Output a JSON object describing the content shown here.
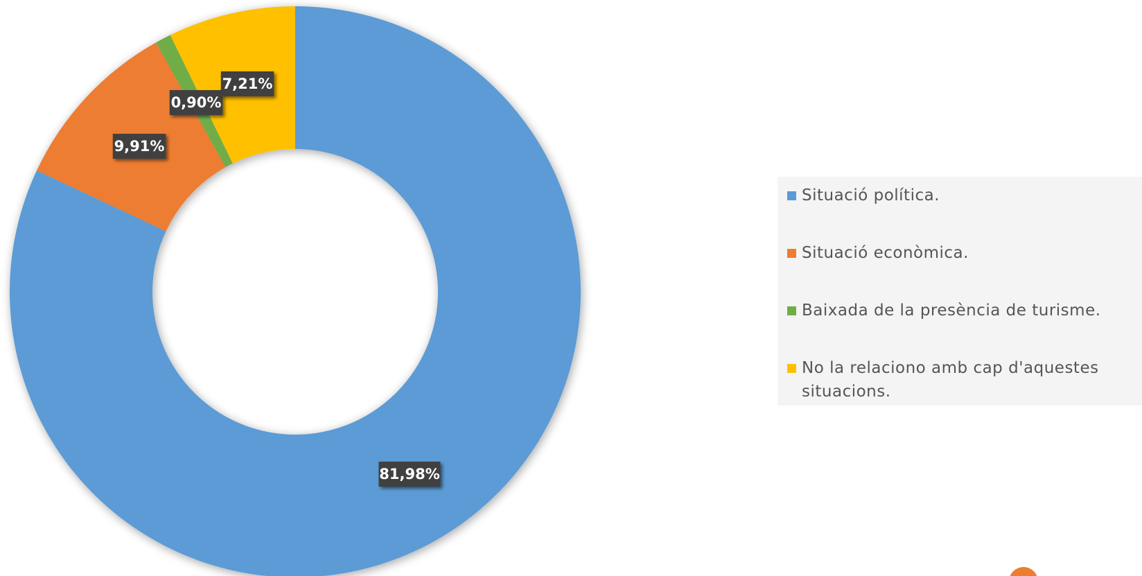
{
  "chart_data": {
    "type": "pie",
    "variant": "donut",
    "slices": [
      {
        "label": "Situació política.",
        "value": 81.98,
        "display": "81,98%",
        "color": "#5b9bd5"
      },
      {
        "label": "Situació econòmica.",
        "value": 9.91,
        "display": "9,91%",
        "color": "#ed7d31"
      },
      {
        "label": "Baixada de la presència de turisme.",
        "value": 0.9,
        "display": "0,90%",
        "color": "#70ad47"
      },
      {
        "label": "No la relaciono amb cap d'aquestes situacions.",
        "value": 7.21,
        "display": "7,21%",
        "color": "#ffc000"
      }
    ],
    "legend_position": "right",
    "data_labels": true
  },
  "legend": {
    "items": [
      {
        "label": "Situació política.",
        "color": "#5b9bd5"
      },
      {
        "label": "Situació econòmica.",
        "color": "#ed7d31"
      },
      {
        "label": "Baixada de la presència de turisme.",
        "color": "#70ad47"
      },
      {
        "label": "No la relaciono amb cap d'aquestes situacions.",
        "color": "#ffc000"
      }
    ]
  },
  "decoration": {
    "corner_color": "#ed7d31"
  }
}
